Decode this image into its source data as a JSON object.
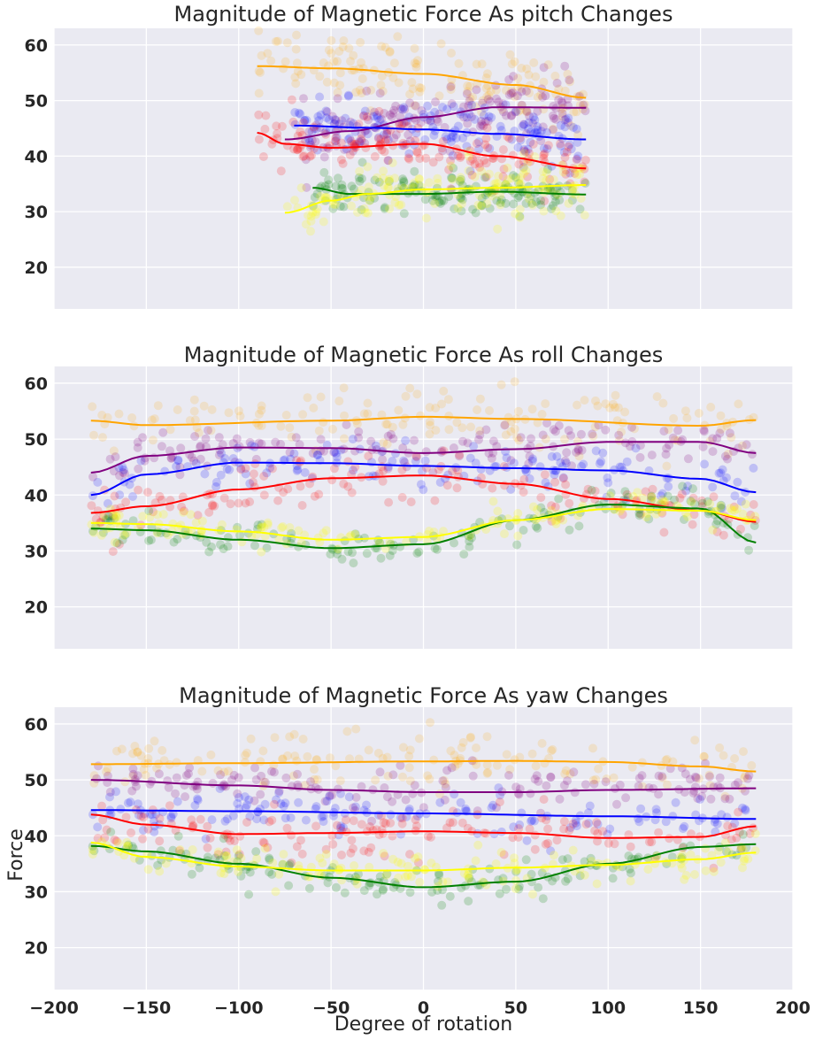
{
  "xlabel": "Degree of rotation",
  "ylabel": "Force",
  "series_colors": {
    "orange": "#ffa500",
    "purple": "#800080",
    "blue": "#0000ff",
    "red": "#ff0000",
    "green": "#008000",
    "yellow": "#ffff00"
  },
  "chart_data": [
    {
      "type": "scatter",
      "title": "Magnitude of Magnetic Force As pitch Changes",
      "xlim": [
        -200,
        200
      ],
      "ylim": [
        12.5,
        63
      ],
      "x_ticks": [
        -200,
        -150,
        -100,
        -50,
        0,
        50,
        100,
        150,
        200
      ],
      "y_ticks": [
        20,
        30,
        40,
        50,
        60
      ],
      "grid": true,
      "x_tick_labels_shown": false,
      "series": [
        {
          "color": "orange",
          "x_range": [
            -90,
            88
          ],
          "spread": 3.0,
          "alpha": 0.16,
          "trend_x": [
            -90,
            -50,
            0,
            50,
            88
          ],
          "trend_y": [
            56.2,
            55.8,
            54.8,
            52.8,
            50.5
          ]
        },
        {
          "color": "purple",
          "x_range": [
            -65,
            88
          ],
          "spread": 2.6,
          "alpha": 0.2,
          "trend_x": [
            -75,
            -40,
            0,
            40,
            88
          ],
          "trend_y": [
            43,
            44.5,
            47,
            48.8,
            48.7
          ]
        },
        {
          "color": "blue",
          "x_range": [
            -70,
            88
          ],
          "spread": 2.4,
          "alpha": 0.18,
          "trend_x": [
            -70,
            -30,
            0,
            40,
            88
          ],
          "trend_y": [
            45.5,
            45.1,
            44.8,
            44,
            43
          ]
        },
        {
          "color": "red",
          "x_range": [
            -90,
            88
          ],
          "spread": 2.6,
          "alpha": 0.18,
          "trend_x": [
            -90,
            -75,
            -50,
            0,
            40,
            88
          ],
          "trend_y": [
            44.2,
            42.2,
            41.5,
            42.2,
            40,
            37.8
          ]
        },
        {
          "color": "green",
          "x_range": [
            -60,
            88
          ],
          "spread": 1.8,
          "alpha": 0.2,
          "trend_x": [
            -60,
            -40,
            0,
            40,
            88
          ],
          "trend_y": [
            34.3,
            33.2,
            33.2,
            33.6,
            33.1
          ]
        },
        {
          "color": "yellow",
          "x_range": [
            -75,
            88
          ],
          "spread": 2.6,
          "alpha": 0.2,
          "trend_x": [
            -75,
            -50,
            -30,
            0,
            40,
            88
          ],
          "trend_y": [
            29.8,
            32,
            33.2,
            34,
            34.3,
            34.8
          ]
        }
      ]
    },
    {
      "type": "scatter",
      "title": "Magnitude of Magnetic Force As roll Changes",
      "xlim": [
        -200,
        200
      ],
      "ylim": [
        12.5,
        63
      ],
      "x_ticks": [
        -200,
        -150,
        -100,
        -50,
        0,
        50,
        100,
        150,
        200
      ],
      "y_ticks": [
        20,
        30,
        40,
        50,
        60
      ],
      "grid": true,
      "x_tick_labels_shown": false,
      "series": [
        {
          "color": "orange",
          "x_range": [
            -180,
            180
          ],
          "spread": 2.8,
          "alpha": 0.16,
          "trend_x": [
            -180,
            -150,
            -50,
            0,
            50,
            150,
            180
          ],
          "trend_y": [
            53.3,
            52.5,
            53.3,
            54,
            53.6,
            52.4,
            53.4
          ]
        },
        {
          "color": "purple",
          "x_range": [
            -180,
            180
          ],
          "spread": 1.9,
          "alpha": 0.2,
          "trend_x": [
            -180,
            -150,
            -100,
            -50,
            0,
            50,
            100,
            150,
            180
          ],
          "trend_y": [
            44,
            47,
            48.5,
            48.4,
            47.5,
            48.2,
            49.5,
            49.5,
            47.5
          ]
        },
        {
          "color": "blue",
          "x_range": [
            -180,
            180
          ],
          "spread": 2.0,
          "alpha": 0.18,
          "trend_x": [
            -180,
            -150,
            -100,
            -50,
            0,
            50,
            100,
            150,
            180
          ],
          "trend_y": [
            40,
            43.7,
            45.8,
            45.7,
            45.2,
            44.8,
            44.4,
            42.9,
            40.5
          ]
        },
        {
          "color": "red",
          "x_range": [
            -180,
            180
          ],
          "spread": 2.2,
          "alpha": 0.18,
          "trend_x": [
            -180,
            -150,
            -100,
            -50,
            0,
            50,
            100,
            150,
            180
          ],
          "trend_y": [
            36.8,
            38,
            41,
            43,
            43.5,
            42,
            39.3,
            37.2,
            35.2
          ]
        },
        {
          "color": "green",
          "x_range": [
            -180,
            180
          ],
          "spread": 1.5,
          "alpha": 0.2,
          "trend_x": [
            -180,
            -150,
            -100,
            -50,
            0,
            50,
            100,
            150,
            180
          ],
          "trend_y": [
            34,
            33.7,
            32,
            30.5,
            31.2,
            35.5,
            38.3,
            37.6,
            31.5
          ]
        },
        {
          "color": "yellow",
          "x_range": [
            -180,
            180
          ],
          "spread": 1.4,
          "alpha": 0.22,
          "trend_x": [
            -180,
            -150,
            -100,
            -50,
            0,
            50,
            100,
            150,
            180
          ],
          "trend_y": [
            35,
            34.8,
            33.5,
            32,
            32.5,
            35.5,
            37.5,
            37.2,
            35.5
          ]
        }
      ]
    },
    {
      "type": "scatter",
      "title": "Magnitude of Magnetic Force As yaw Changes",
      "xlim": [
        -200,
        200
      ],
      "ylim": [
        12.5,
        63
      ],
      "x_ticks": [
        -200,
        -150,
        -100,
        -50,
        0,
        50,
        100,
        150,
        200
      ],
      "y_ticks": [
        20,
        30,
        40,
        50,
        60
      ],
      "grid": true,
      "x_tick_labels_shown": true,
      "series": [
        {
          "color": "orange",
          "x_range": [
            -180,
            180
          ],
          "spread": 2.8,
          "alpha": 0.16,
          "trend_x": [
            -180,
            -100,
            0,
            50,
            100,
            150,
            180
          ],
          "trend_y": [
            52.8,
            53,
            53.3,
            53.4,
            53.2,
            52.4,
            51.5
          ]
        },
        {
          "color": "purple",
          "x_range": [
            -180,
            180
          ],
          "spread": 1.8,
          "alpha": 0.2,
          "trend_x": [
            -180,
            -100,
            -50,
            0,
            50,
            100,
            180
          ],
          "trend_y": [
            50,
            49,
            48.2,
            47.8,
            47.8,
            48.2,
            48.5
          ]
        },
        {
          "color": "blue",
          "x_range": [
            -180,
            180
          ],
          "spread": 1.9,
          "alpha": 0.18,
          "trend_x": [
            -180,
            -100,
            0,
            100,
            180
          ],
          "trend_y": [
            44.6,
            44.4,
            44,
            43.5,
            43
          ]
        },
        {
          "color": "red",
          "x_range": [
            -180,
            180
          ],
          "spread": 2.2,
          "alpha": 0.18,
          "trend_x": [
            -180,
            -150,
            -100,
            -50,
            0,
            50,
            100,
            150,
            180
          ],
          "trend_y": [
            43.8,
            42,
            40.3,
            40.5,
            40.8,
            40.5,
            39.6,
            39.8,
            41.7
          ]
        },
        {
          "color": "green",
          "x_range": [
            -180,
            180
          ],
          "spread": 1.6,
          "alpha": 0.2,
          "trend_x": [
            -180,
            -150,
            -100,
            -50,
            0,
            50,
            100,
            150,
            180
          ],
          "trend_y": [
            38.2,
            37.2,
            35,
            32.5,
            30.8,
            31.8,
            35,
            38,
            38.5
          ]
        },
        {
          "color": "yellow",
          "x_range": [
            -180,
            180
          ],
          "spread": 1.6,
          "alpha": 0.22,
          "trend_x": [
            -180,
            -150,
            -100,
            -50,
            0,
            50,
            100,
            150,
            180
          ],
          "trend_y": [
            38.8,
            36.2,
            34.5,
            33.8,
            33.8,
            34.3,
            34.8,
            35.8,
            37
          ]
        }
      ]
    }
  ]
}
